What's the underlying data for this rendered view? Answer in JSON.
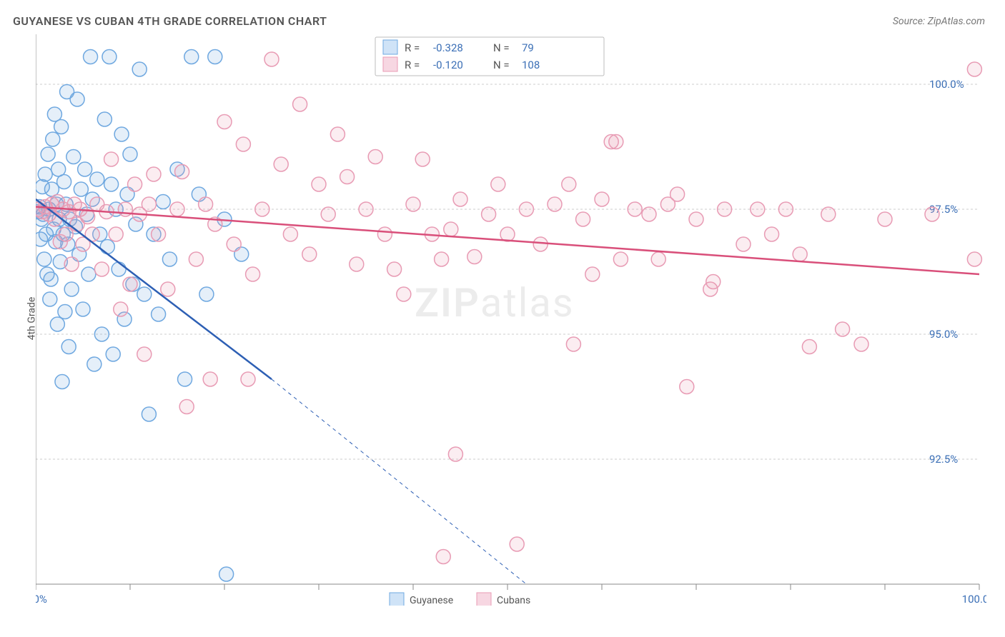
{
  "title": "GUYANESE VS CUBAN 4TH GRADE CORRELATION CHART",
  "source": "Source: ZipAtlas.com",
  "ylabel": "4th Grade",
  "watermark_a": "ZIP",
  "watermark_b": "atlas",
  "chart": {
    "type": "scatter",
    "xlim": [
      0,
      100
    ],
    "ylim": [
      90,
      101
    ],
    "xtick_positions": [
      0,
      10,
      20,
      30,
      40,
      50,
      60,
      70,
      80,
      90,
      100
    ],
    "xtick_labels": {
      "0": "0.0%",
      "100": "100.0%"
    },
    "ytick_positions": [
      92.5,
      95.0,
      97.5,
      100.0
    ],
    "ytick_labels": [
      "92.5%",
      "95.0%",
      "97.5%",
      "100.0%"
    ],
    "grid_color": "#cccccc",
    "axis_color": "#8a8a8a",
    "background_color": "#ffffff",
    "marker_radius": 10,
    "series": [
      {
        "name": "Guyanese",
        "R": "-0.328",
        "N": "79",
        "color_stroke": "#6fa8e0",
        "color_fill": "#6fa8e0",
        "trend_color": "#2d5fb4",
        "trend": {
          "x1": 0,
          "y1": 97.7,
          "x2": 25,
          "y2": 94.1
        },
        "trend_ext": {
          "x1": 25,
          "y1": 94.1,
          "x2": 52,
          "y2": 90.0
        },
        "points": [
          [
            0.2,
            97.45
          ],
          [
            0.4,
            97.55
          ],
          [
            0.5,
            96.9
          ],
          [
            0.6,
            97.3
          ],
          [
            0.7,
            97.95
          ],
          [
            0.8,
            97.4
          ],
          [
            0.9,
            96.5
          ],
          [
            1.0,
            98.2
          ],
          [
            1.1,
            97.0
          ],
          [
            1.2,
            96.2
          ],
          [
            1.3,
            98.6
          ],
          [
            1.4,
            97.5
          ],
          [
            1.5,
            95.7
          ],
          [
            1.6,
            96.1
          ],
          [
            1.7,
            97.9
          ],
          [
            1.8,
            98.9
          ],
          [
            1.9,
            97.1
          ],
          [
            2.0,
            99.4
          ],
          [
            2.1,
            96.85
          ],
          [
            2.2,
            97.6
          ],
          [
            2.3,
            95.2
          ],
          [
            2.4,
            98.3
          ],
          [
            2.5,
            97.3
          ],
          [
            2.6,
            96.45
          ],
          [
            2.7,
            99.15
          ],
          [
            2.8,
            94.05
          ],
          [
            2.9,
            97.0
          ],
          [
            3.0,
            98.05
          ],
          [
            3.1,
            95.45
          ],
          [
            3.2,
            97.6
          ],
          [
            3.3,
            99.85
          ],
          [
            3.4,
            96.8
          ],
          [
            3.5,
            94.75
          ],
          [
            3.6,
            97.3
          ],
          [
            3.8,
            95.9
          ],
          [
            4.0,
            98.55
          ],
          [
            4.2,
            97.15
          ],
          [
            4.4,
            99.7
          ],
          [
            4.6,
            96.6
          ],
          [
            4.8,
            97.9
          ],
          [
            5.0,
            95.5
          ],
          [
            5.2,
            98.3
          ],
          [
            5.4,
            97.4
          ],
          [
            5.6,
            96.2
          ],
          [
            5.8,
            100.55
          ],
          [
            6.0,
            97.7
          ],
          [
            6.2,
            94.4
          ],
          [
            6.5,
            98.1
          ],
          [
            6.8,
            97.0
          ],
          [
            7.0,
            95.0
          ],
          [
            7.3,
            99.3
          ],
          [
            7.6,
            96.75
          ],
          [
            7.8,
            100.55
          ],
          [
            8.0,
            98.0
          ],
          [
            8.2,
            94.6
          ],
          [
            8.5,
            97.5
          ],
          [
            8.8,
            96.3
          ],
          [
            9.1,
            99.0
          ],
          [
            9.4,
            95.3
          ],
          [
            9.7,
            97.8
          ],
          [
            10.0,
            98.6
          ],
          [
            10.3,
            96.0
          ],
          [
            10.6,
            97.2
          ],
          [
            11.0,
            100.3
          ],
          [
            11.5,
            95.8
          ],
          [
            12.0,
            93.4
          ],
          [
            12.5,
            97.0
          ],
          [
            13.0,
            95.4
          ],
          [
            13.5,
            97.65
          ],
          [
            14.2,
            96.5
          ],
          [
            15.0,
            98.3
          ],
          [
            15.8,
            94.1
          ],
          [
            16.5,
            100.55
          ],
          [
            17.3,
            97.8
          ],
          [
            18.1,
            95.8
          ],
          [
            19.0,
            100.55
          ],
          [
            20.0,
            97.3
          ],
          [
            21.8,
            96.6
          ],
          [
            20.2,
            90.2
          ]
        ]
      },
      {
        "name": "Cubans",
        "R": "-0.120",
        "N": "108",
        "color_stroke": "#e89bb4",
        "color_fill": "#e89bb4",
        "trend_color": "#d94f7a",
        "trend": {
          "x1": 0,
          "y1": 97.55,
          "x2": 100,
          "y2": 96.2
        },
        "trend_ext": null,
        "points": [
          [
            0.3,
            97.5
          ],
          [
            0.7,
            97.45
          ],
          [
            1.0,
            97.55
          ],
          [
            1.4,
            97.4
          ],
          [
            1.7,
            97.6
          ],
          [
            2.0,
            97.3
          ],
          [
            2.3,
            97.65
          ],
          [
            2.6,
            96.85
          ],
          [
            2.9,
            97.5
          ],
          [
            3.2,
            97.0
          ],
          [
            3.5,
            97.45
          ],
          [
            3.8,
            96.4
          ],
          [
            4.1,
            97.6
          ],
          [
            4.4,
            97.2
          ],
          [
            4.7,
            97.5
          ],
          [
            5.0,
            96.8
          ],
          [
            5.5,
            97.35
          ],
          [
            6.0,
            97.0
          ],
          [
            6.5,
            97.6
          ],
          [
            7.0,
            96.3
          ],
          [
            7.5,
            97.45
          ],
          [
            8.0,
            98.5
          ],
          [
            8.5,
            97.0
          ],
          [
            9.0,
            95.5
          ],
          [
            9.5,
            97.5
          ],
          [
            10.0,
            96.0
          ],
          [
            10.5,
            98.0
          ],
          [
            11.0,
            97.4
          ],
          [
            11.5,
            94.6
          ],
          [
            12.0,
            97.6
          ],
          [
            12.5,
            98.2
          ],
          [
            13.0,
            97.0
          ],
          [
            14.0,
            95.9
          ],
          [
            15.0,
            97.5
          ],
          [
            15.5,
            98.25
          ],
          [
            16.0,
            93.55
          ],
          [
            17.0,
            96.5
          ],
          [
            18.0,
            97.6
          ],
          [
            18.5,
            94.1
          ],
          [
            19.0,
            97.2
          ],
          [
            20.0,
            99.25
          ],
          [
            21.0,
            96.8
          ],
          [
            22.0,
            98.8
          ],
          [
            22.5,
            94.1
          ],
          [
            23.0,
            96.2
          ],
          [
            24.0,
            97.5
          ],
          [
            25.0,
            100.5
          ],
          [
            26.0,
            98.4
          ],
          [
            27.0,
            97.0
          ],
          [
            28.0,
            99.6
          ],
          [
            29.0,
            96.6
          ],
          [
            30.0,
            98.0
          ],
          [
            31.0,
            97.4
          ],
          [
            32.0,
            99.0
          ],
          [
            33.0,
            98.15
          ],
          [
            34.0,
            96.4
          ],
          [
            35.0,
            97.5
          ],
          [
            36.0,
            98.55
          ],
          [
            37.0,
            97.0
          ],
          [
            38.0,
            96.3
          ],
          [
            39.0,
            95.8
          ],
          [
            40.0,
            97.6
          ],
          [
            41.0,
            98.5
          ],
          [
            42.0,
            97.0
          ],
          [
            43.0,
            96.5
          ],
          [
            43.2,
            90.55
          ],
          [
            44.0,
            97.1
          ],
          [
            44.5,
            92.6
          ],
          [
            45.0,
            97.7
          ],
          [
            46.5,
            96.55
          ],
          [
            48.0,
            97.4
          ],
          [
            49.0,
            98.0
          ],
          [
            50.0,
            97.0
          ],
          [
            51.0,
            90.8
          ],
          [
            52.0,
            97.5
          ],
          [
            53.5,
            96.8
          ],
          [
            55.0,
            97.6
          ],
          [
            56.5,
            98.0
          ],
          [
            57.0,
            94.8
          ],
          [
            58.0,
            97.3
          ],
          [
            59.0,
            96.2
          ],
          [
            60.0,
            97.7
          ],
          [
            61.0,
            98.85
          ],
          [
            61.5,
            98.85
          ],
          [
            62.0,
            96.5
          ],
          [
            63.5,
            97.5
          ],
          [
            65.0,
            97.4
          ],
          [
            66.0,
            96.5
          ],
          [
            67.0,
            97.6
          ],
          [
            68.0,
            97.8
          ],
          [
            69.0,
            93.95
          ],
          [
            70.0,
            97.3
          ],
          [
            71.5,
            95.9
          ],
          [
            71.8,
            96.05
          ],
          [
            73.0,
            97.5
          ],
          [
            75.0,
            96.8
          ],
          [
            76.5,
            97.5
          ],
          [
            78.0,
            97.0
          ],
          [
            79.5,
            97.5
          ],
          [
            81.0,
            96.6
          ],
          [
            82.0,
            94.75
          ],
          [
            84.0,
            97.4
          ],
          [
            85.5,
            95.1
          ],
          [
            87.5,
            94.8
          ],
          [
            90.0,
            97.3
          ],
          [
            95.0,
            97.4
          ],
          [
            99.5,
            100.3
          ],
          [
            99.5,
            96.5
          ]
        ]
      }
    ]
  },
  "legend": {
    "rows": [
      {
        "swatch_fill": "#cfe3f7",
        "swatch_stroke": "#6fa8e0",
        "r_label": "R =",
        "r_val": "-0.328",
        "n_label": "N =",
        "n_val": "79"
      },
      {
        "swatch_fill": "#f7d7e2",
        "swatch_stroke": "#e89bb4",
        "r_label": "R =",
        "r_val": "-0.120",
        "n_label": "N =",
        "n_val": "108"
      }
    ]
  },
  "bottom_legend": [
    {
      "swatch_fill": "#cfe3f7",
      "swatch_stroke": "#6fa8e0",
      "label": "Guyanese"
    },
    {
      "swatch_fill": "#f7d7e2",
      "swatch_stroke": "#e89bb4",
      "label": "Cubans"
    }
  ]
}
